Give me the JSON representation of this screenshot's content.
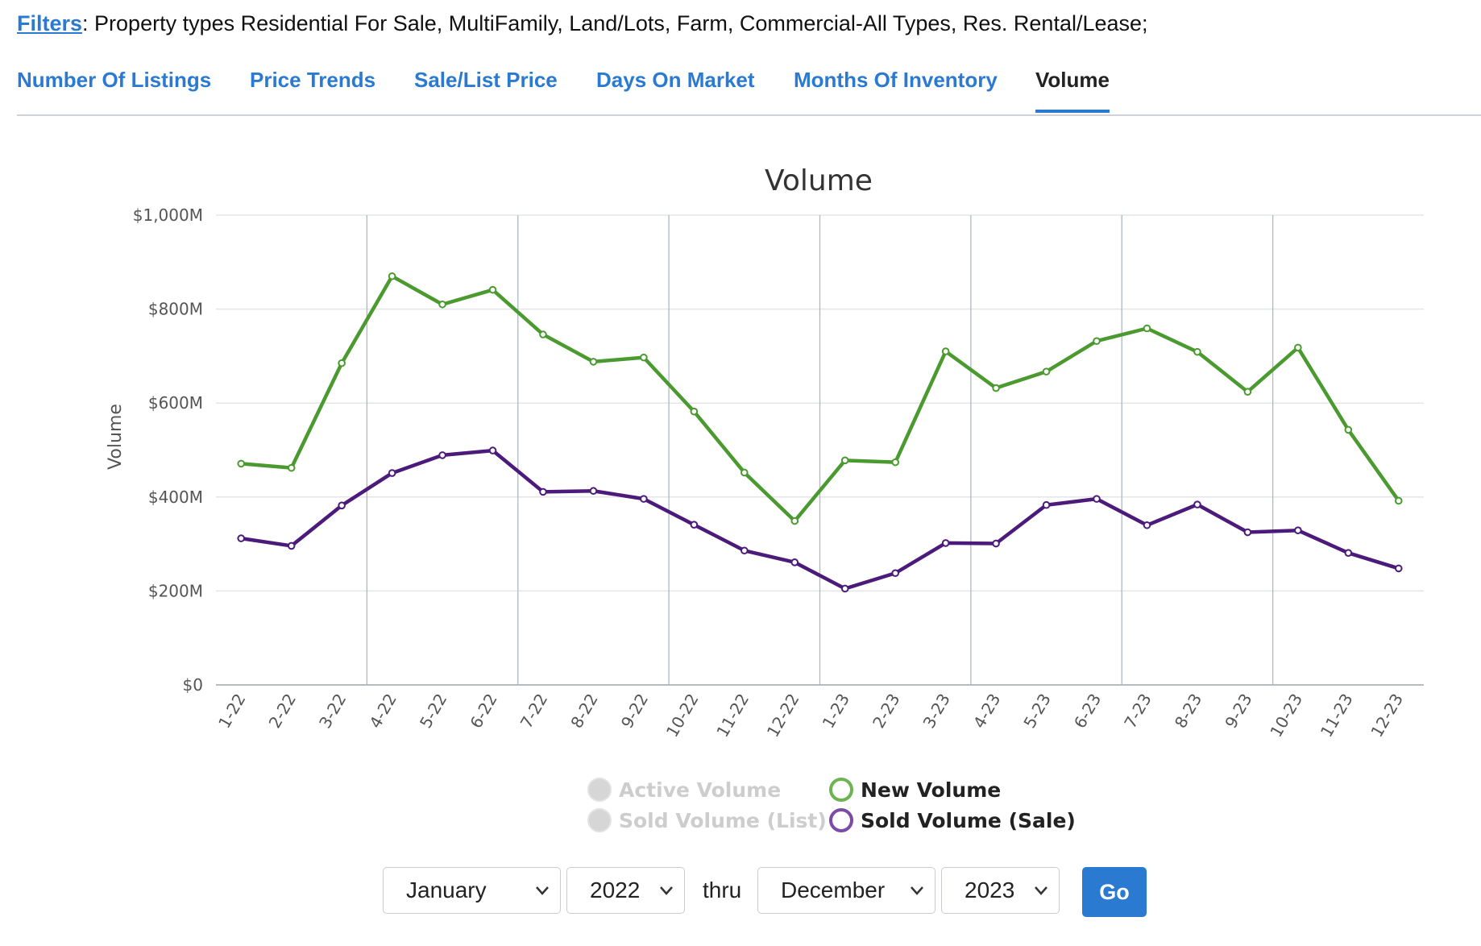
{
  "filters": {
    "link_label": "Filters",
    "text": ": Property types Residential For Sale, MultiFamily, Land/Lots, Farm, Commercial-All Types, Res. Rental/Lease;"
  },
  "tabs": [
    {
      "label": "Number Of Listings",
      "active": false
    },
    {
      "label": "Price Trends",
      "active": false
    },
    {
      "label": "Sale/List Price",
      "active": false
    },
    {
      "label": "Days On Market",
      "active": false
    },
    {
      "label": "Months Of Inventory",
      "active": false
    },
    {
      "label": "Volume",
      "active": true
    }
  ],
  "chart_data": {
    "type": "line",
    "title": "Volume",
    "xlabel": "",
    "ylabel": "Volume",
    "ylim": [
      0,
      1000
    ],
    "y_ticks": [
      0,
      200,
      400,
      600,
      800,
      1000
    ],
    "y_tick_labels": [
      "$0",
      "$200M",
      "$400M",
      "$600M",
      "$800M",
      "$1,000M"
    ],
    "categories": [
      "1-22",
      "2-22",
      "3-22",
      "4-22",
      "5-22",
      "6-22",
      "7-22",
      "8-22",
      "9-22",
      "10-22",
      "11-22",
      "12-22",
      "1-23",
      "2-23",
      "3-23",
      "4-23",
      "5-23",
      "6-23",
      "7-23",
      "8-23",
      "9-23",
      "10-23",
      "11-23",
      "12-23"
    ],
    "grid": true,
    "legend_position": "bottom",
    "series": [
      {
        "name": "New Volume",
        "color": "#4a9a30",
        "visible": true,
        "values": [
          471,
          462,
          685,
          870,
          810,
          841,
          746,
          688,
          697,
          582,
          452,
          349,
          478,
          474,
          710,
          632,
          667,
          732,
          759,
          709,
          624,
          718,
          543,
          392
        ]
      },
      {
        "name": "Sold Volume (Sale)",
        "color": "#4b1a7a",
        "visible": true,
        "values": [
          312,
          296,
          382,
          451,
          489,
          499,
          411,
          413,
          396,
          341,
          286,
          261,
          205,
          238,
          302,
          301,
          383,
          396,
          340,
          384,
          325,
          329,
          281,
          248
        ]
      }
    ],
    "legend": [
      {
        "name": "Active Volume",
        "state": "disabled",
        "color": "#d6d6d6"
      },
      {
        "name": "Sold Volume (List)",
        "state": "disabled",
        "color": "#d6d6d6"
      },
      {
        "name": "New Volume",
        "state": "enabled",
        "color": "#6db350"
      },
      {
        "name": "Sold Volume (Sale)",
        "state": "enabled",
        "color": "#7b4ba6"
      }
    ]
  },
  "date_range": {
    "start_month": "January",
    "start_year": "2022",
    "thru_label": "thru",
    "end_month": "December",
    "end_year": "2023",
    "go_label": "Go"
  }
}
